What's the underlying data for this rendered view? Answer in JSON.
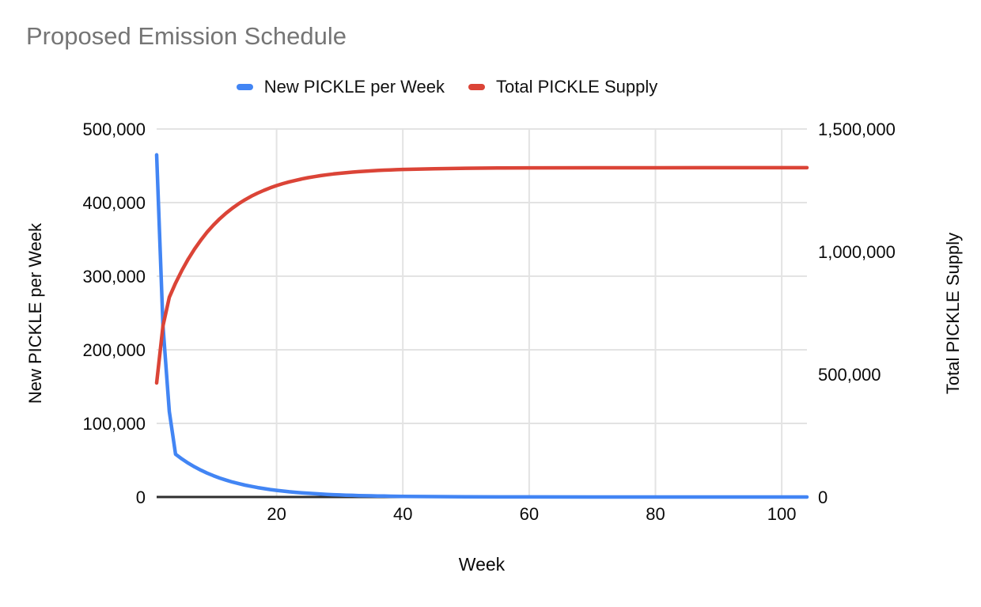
{
  "title": "Proposed Emission Schedule",
  "colors": {
    "background": "#ffffff",
    "title_text": "#757575",
    "tick_text": "#0a0a0a",
    "grid": "#e3e3e3",
    "axis_line": "#2f2f2f",
    "series_blue": "#4285f4",
    "series_red": "#db4437"
  },
  "legend": {
    "items": [
      {
        "label": "New PICKLE per Week",
        "color": "#4285f4"
      },
      {
        "label": "Total PICKLE Supply",
        "color": "#db4437"
      }
    ]
  },
  "chart_data": {
    "type": "line",
    "title": "Proposed Emission Schedule",
    "xlabel": "Week",
    "ylabel_left": "New PICKLE per Week",
    "ylabel_right": "Total PICKLE Supply",
    "legend_position": "top",
    "grid": true,
    "xlim": [
      1,
      104
    ],
    "ylim_left": [
      0,
      500000
    ],
    "ylim_right": [
      0,
      1500000
    ],
    "x_ticks": [
      20,
      40,
      60,
      80,
      100
    ],
    "left_ticks": [
      0,
      100000,
      200000,
      300000,
      400000,
      500000
    ],
    "right_ticks": [
      0,
      500000,
      1000000,
      1500000
    ],
    "x": [
      1,
      2,
      3,
      4,
      5,
      6,
      7,
      8,
      9,
      10,
      11,
      12,
      13,
      14,
      15,
      16,
      17,
      18,
      19,
      20,
      21,
      22,
      23,
      24,
      25,
      26,
      27,
      28,
      29,
      30,
      31,
      32,
      33,
      34,
      35,
      36,
      37,
      38,
      39,
      40,
      45,
      50,
      55,
      60,
      70,
      80,
      90,
      104
    ],
    "series": [
      {
        "name": "New PICKLE per Week",
        "axis": "left",
        "color": "#4285f4",
        "values": [
          465000,
          232500,
          116250,
          58125,
          51731,
          46041,
          40976,
          36469,
          32457,
          28887,
          25709,
          22881,
          20364,
          18124,
          16131,
          14356,
          12777,
          11372,
          10121,
          9007,
          8017,
          7135,
          6350,
          5651,
          5030,
          4477,
          3984,
          3546,
          3156,
          2809,
          2500,
          2225,
          1980,
          1762,
          1568,
          1396,
          1242,
          1106,
          984,
          876,
          489,
          273,
          152,
          85,
          27,
          8,
          3,
          1
        ]
      },
      {
        "name": "Total PICKLE Supply",
        "axis": "right",
        "color": "#db4437",
        "values": [
          465000,
          697500,
          813750,
          871875,
          923606,
          969647,
          1010623,
          1047092,
          1079550,
          1108437,
          1134146,
          1157028,
          1177392,
          1195516,
          1211647,
          1226003,
          1238781,
          1250152,
          1260273,
          1269280,
          1277297,
          1284432,
          1290782,
          1296433,
          1301463,
          1305940,
          1309924,
          1313470,
          1316626,
          1319434,
          1321934,
          1324159,
          1326139,
          1327901,
          1329469,
          1330865,
          1332108,
          1333213,
          1334197,
          1335073,
          1338202,
          1339949,
          1340925,
          1341470,
          1341944,
          1342092,
          1342138,
          1342155
        ]
      }
    ]
  }
}
